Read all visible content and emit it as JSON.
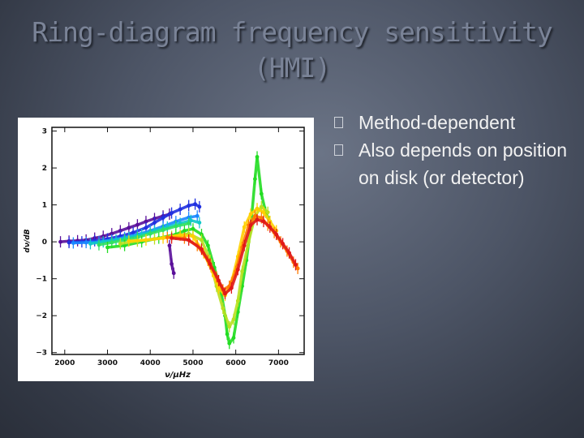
{
  "slide": {
    "title_line1": "Ring-diagram frequency sensitivity",
    "title_line2": "(HMI)",
    "bullets": [
      "Method-dependent",
      "Also depends on position on disk (or detector)"
    ]
  },
  "chart_data": {
    "type": "scatter",
    "xlabel": "ν/μHz",
    "ylabel": "dν/dB",
    "xlim": [
      1700,
      7600
    ],
    "ylim": [
      -3.05,
      3.1
    ],
    "xticks": [
      "2000",
      "3000",
      "4000",
      "5000",
      "6000",
      "7000"
    ],
    "yticks": [
      "3",
      "2",
      "1",
      "0",
      "−1",
      "−2",
      "−3"
    ],
    "grid": false,
    "series": [
      {
        "color": "#5a0f9a",
        "points": [
          [
            1900,
            0
          ],
          [
            2100,
            0.02
          ],
          [
            2300,
            0.03
          ],
          [
            2500,
            0.05
          ],
          [
            2700,
            0.1
          ],
          [
            2900,
            0.15
          ],
          [
            3100,
            0.22
          ],
          [
            3300,
            0.3
          ],
          [
            3500,
            0.38
          ],
          [
            3700,
            0.46
          ],
          [
            3900,
            0.55
          ],
          [
            4100,
            0.63
          ],
          [
            4300,
            0.7
          ],
          [
            4450,
            0.75
          ]
        ]
      },
      {
        "color": "#5a0f9a",
        "points": [
          [
            4450,
            -0.1
          ],
          [
            4500,
            -0.6
          ],
          [
            4550,
            -0.85
          ]
        ]
      },
      {
        "color": "#2030e0",
        "points": [
          [
            2100,
            -0.02
          ],
          [
            2400,
            0
          ],
          [
            2700,
            0.03
          ],
          [
            3000,
            0.08
          ],
          [
            3300,
            0.15
          ],
          [
            3600,
            0.25
          ],
          [
            3900,
            0.38
          ],
          [
            4100,
            0.52
          ],
          [
            4300,
            0.65
          ],
          [
            4500,
            0.78
          ],
          [
            4700,
            0.88
          ],
          [
            4900,
            0.98
          ],
          [
            5050,
            1.02
          ],
          [
            5150,
            0.95
          ]
        ]
      },
      {
        "color": "#1a88ff",
        "points": [
          [
            2200,
            -0.03
          ],
          [
            2500,
            -0.02
          ],
          [
            2800,
            0
          ],
          [
            3100,
            0.05
          ],
          [
            3400,
            0.12
          ],
          [
            3700,
            0.2
          ],
          [
            4000,
            0.3
          ],
          [
            4300,
            0.42
          ],
          [
            4600,
            0.55
          ],
          [
            4900,
            0.66
          ],
          [
            5100,
            0.7
          ]
        ]
      },
      {
        "color": "#10c8c8",
        "points": [
          [
            2600,
            -0.05
          ],
          [
            2900,
            0
          ],
          [
            3200,
            0.05
          ],
          [
            3500,
            0.12
          ],
          [
            3800,
            0.2
          ],
          [
            4100,
            0.3
          ],
          [
            4400,
            0.4
          ],
          [
            4700,
            0.5
          ],
          [
            4950,
            0.58
          ],
          [
            5150,
            0.52
          ]
        ]
      },
      {
        "color": "#30e060",
        "points": [
          [
            2800,
            -0.08
          ],
          [
            3100,
            -0.02
          ],
          [
            3400,
            0.05
          ],
          [
            3700,
            0.12
          ],
          [
            4000,
            0.22
          ],
          [
            4300,
            0.32
          ],
          [
            4600,
            0.42
          ],
          [
            4900,
            0.5
          ]
        ]
      },
      {
        "color": "#22dd22",
        "points": [
          [
            3000,
            -0.15
          ],
          [
            3400,
            -0.1
          ],
          [
            3800,
            0
          ],
          [
            4200,
            0.1
          ],
          [
            4600,
            0.2
          ],
          [
            4800,
            0.3
          ],
          [
            5000,
            0.35
          ],
          [
            5200,
            0.2
          ],
          [
            5350,
            -0.1
          ],
          [
            5500,
            -0.7
          ],
          [
            5650,
            -1.3
          ],
          [
            5750,
            -2
          ],
          [
            5800,
            -2.5
          ],
          [
            5850,
            -2.75
          ],
          [
            5950,
            -2.6
          ],
          [
            6050,
            -1.9
          ],
          [
            6150,
            -1.2
          ],
          [
            6250,
            -0.5
          ],
          [
            6350,
            0.4
          ],
          [
            6450,
            1.7
          ],
          [
            6500,
            2.3
          ],
          [
            6600,
            1.3
          ],
          [
            6700,
            0.8
          ],
          [
            6800,
            0.55
          ]
        ]
      },
      {
        "color": "#b8e020",
        "points": [
          [
            3300,
            -0.05
          ],
          [
            3700,
            0.02
          ],
          [
            4100,
            0.08
          ],
          [
            4500,
            0.15
          ],
          [
            4900,
            0.22
          ],
          [
            5200,
            0.05
          ],
          [
            5400,
            -0.5
          ],
          [
            5550,
            -1.2
          ],
          [
            5700,
            -1.8
          ],
          [
            5850,
            -2.3
          ],
          [
            5950,
            -2.1
          ],
          [
            6050,
            -1.6
          ],
          [
            6150,
            -0.8
          ],
          [
            6300,
            0
          ],
          [
            6450,
            0.7
          ],
          [
            6600,
            0.95
          ],
          [
            6750,
            0.8
          ]
        ]
      },
      {
        "color": "#ffd000",
        "points": [
          [
            3500,
            0.02
          ],
          [
            3900,
            0.05
          ],
          [
            4300,
            0.1
          ],
          [
            4700,
            0.18
          ],
          [
            5000,
            0.15
          ],
          [
            5250,
            -0.3
          ],
          [
            5450,
            -0.8
          ],
          [
            5600,
            -1.25
          ],
          [
            5750,
            -1.45
          ],
          [
            5900,
            -1.1
          ],
          [
            6050,
            -0.4
          ],
          [
            6200,
            0.4
          ],
          [
            6350,
            0.75
          ],
          [
            6500,
            0.9
          ],
          [
            6650,
            0.8
          ],
          [
            6800,
            0.55
          ],
          [
            6950,
            0.3
          ]
        ]
      },
      {
        "color": "#ff7a00",
        "points": [
          [
            4400,
            0.12
          ],
          [
            4800,
            0.1
          ],
          [
            5100,
            -0.1
          ],
          [
            5350,
            -0.5
          ],
          [
            5550,
            -0.95
          ],
          [
            5700,
            -1.3
          ],
          [
            5850,
            -1.2
          ],
          [
            6000,
            -0.8
          ],
          [
            6150,
            -0.15
          ],
          [
            6300,
            0.45
          ],
          [
            6450,
            0.7
          ],
          [
            6600,
            0.65
          ],
          [
            6750,
            0.45
          ],
          [
            6900,
            0.25
          ],
          [
            7050,
            0
          ],
          [
            7200,
            -0.25
          ],
          [
            7350,
            -0.55
          ],
          [
            7450,
            -0.72
          ]
        ]
      },
      {
        "color": "#e01818",
        "points": [
          [
            4500,
            0.1
          ],
          [
            4900,
            0.05
          ],
          [
            5200,
            -0.2
          ],
          [
            5400,
            -0.6
          ],
          [
            5600,
            -1.05
          ],
          [
            5750,
            -1.4
          ],
          [
            5900,
            -1.25
          ],
          [
            6050,
            -0.75
          ],
          [
            6200,
            -0.1
          ],
          [
            6350,
            0.45
          ],
          [
            6500,
            0.6
          ],
          [
            6650,
            0.55
          ],
          [
            6800,
            0.4
          ],
          [
            6950,
            0.2
          ],
          [
            7100,
            -0.05
          ],
          [
            7250,
            -0.3
          ],
          [
            7400,
            -0.62
          ]
        ]
      }
    ]
  }
}
